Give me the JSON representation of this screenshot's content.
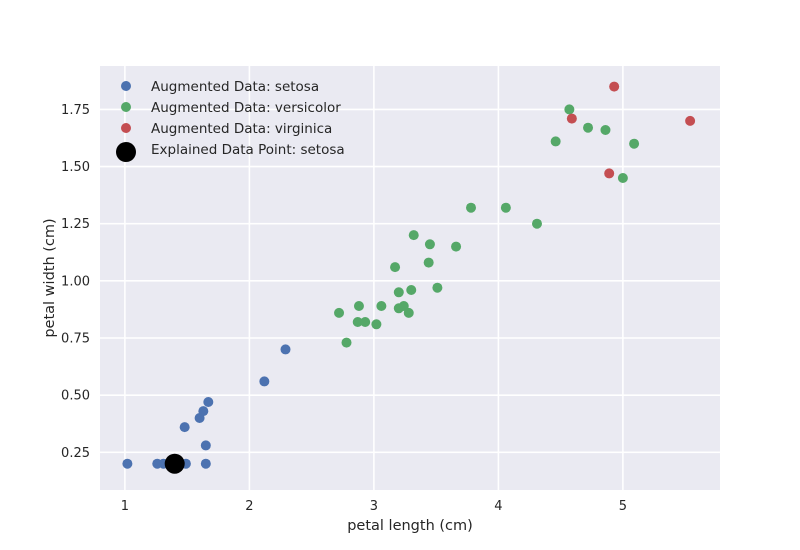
{
  "chart_data": {
    "type": "scatter",
    "title": "",
    "xlabel": "petal length (cm)",
    "ylabel": "petal width (cm)",
    "xlim": [
      0.8,
      5.78
    ],
    "ylim": [
      0.085,
      1.94
    ],
    "xticks": [
      1,
      2,
      3,
      4,
      5
    ],
    "xtick_labels": [
      "1",
      "2",
      "3",
      "4",
      "5"
    ],
    "yticks": [
      0.25,
      0.5,
      0.75,
      1.0,
      1.25,
      1.5,
      1.75
    ],
    "ytick_labels": [
      "0.25",
      "0.50",
      "0.75",
      "1.00",
      "1.25",
      "1.50",
      "1.75"
    ],
    "grid": true,
    "legend_position": "top-left",
    "background": "#eaeaf2",
    "series": [
      {
        "name": "Augmented Data: setosa",
        "color": "#4c72b0",
        "points": [
          [
            1.02,
            0.2
          ],
          [
            1.26,
            0.2
          ],
          [
            1.31,
            0.2
          ],
          [
            1.49,
            0.2
          ],
          [
            1.65,
            0.2
          ],
          [
            1.48,
            0.36
          ],
          [
            1.6,
            0.4
          ],
          [
            1.63,
            0.43
          ],
          [
            1.67,
            0.47
          ],
          [
            1.65,
            0.28
          ],
          [
            2.12,
            0.56
          ],
          [
            2.29,
            0.7
          ]
        ]
      },
      {
        "name": "Augmented Data: versicolor",
        "color": "#55a868",
        "points": [
          [
            2.72,
            0.86
          ],
          [
            2.78,
            0.73
          ],
          [
            2.87,
            0.82
          ],
          [
            2.88,
            0.89
          ],
          [
            2.93,
            0.82
          ],
          [
            3.02,
            0.81
          ],
          [
            3.06,
            0.89
          ],
          [
            3.2,
            0.88
          ],
          [
            3.24,
            0.89
          ],
          [
            3.28,
            0.86
          ],
          [
            3.2,
            0.95
          ],
          [
            3.3,
            0.96
          ],
          [
            3.17,
            1.06
          ],
          [
            3.44,
            1.08
          ],
          [
            3.32,
            1.2
          ],
          [
            3.45,
            1.16
          ],
          [
            3.66,
            1.15
          ],
          [
            3.51,
            0.97
          ],
          [
            3.78,
            1.32
          ],
          [
            4.06,
            1.32
          ],
          [
            4.31,
            1.25
          ],
          [
            4.46,
            1.61
          ],
          [
            4.57,
            1.75
          ],
          [
            4.72,
            1.67
          ],
          [
            4.86,
            1.66
          ],
          [
            5.09,
            1.6
          ],
          [
            5.0,
            1.45
          ]
        ]
      },
      {
        "name": "Augmented Data: virginica",
        "color": "#c44e52",
        "points": [
          [
            4.59,
            1.71
          ],
          [
            4.93,
            1.85
          ],
          [
            4.89,
            1.47
          ],
          [
            5.54,
            1.7
          ]
        ]
      },
      {
        "name": "Explained Data Point: setosa",
        "color": "#000000",
        "marker": "large",
        "points": [
          [
            1.4,
            0.2
          ]
        ]
      }
    ]
  }
}
